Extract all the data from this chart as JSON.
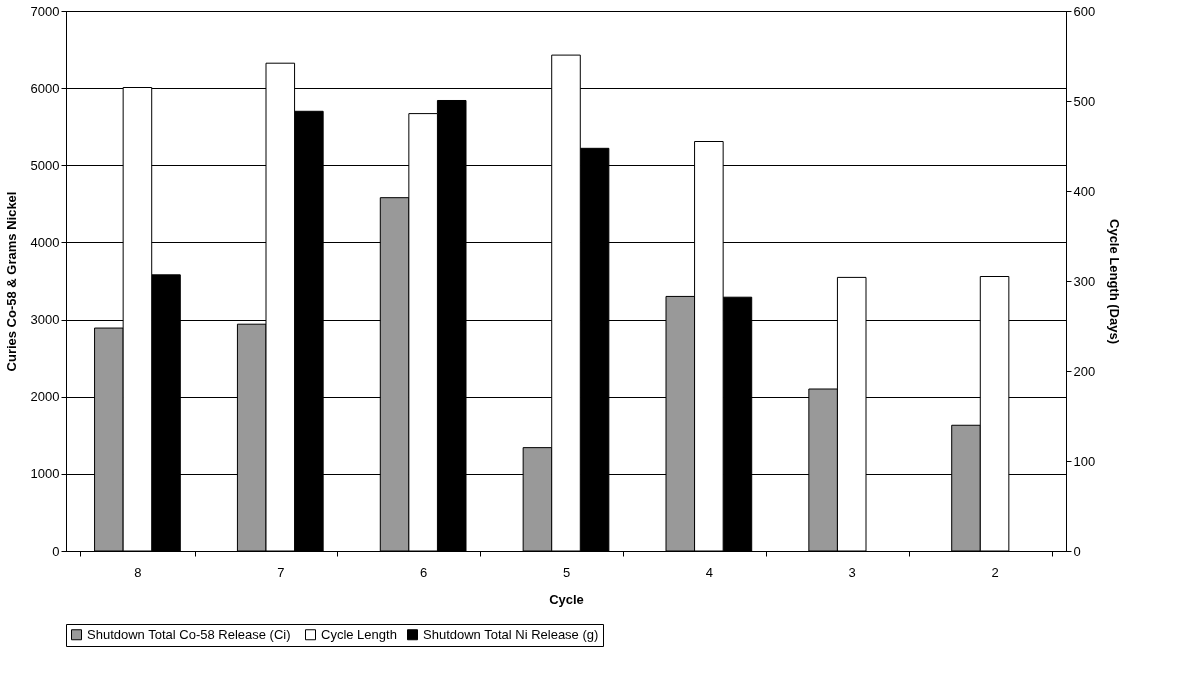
{
  "chart_data": {
    "type": "bar",
    "xlabel": "Cycle",
    "ylabel": "Curies Co-58 & Grams Nickel",
    "y2label": "Cycle Length (Days)",
    "categories": [
      "8",
      "7",
      "6",
      "5",
      "4",
      "3",
      "2"
    ],
    "series": [
      {
        "name": "Shutdown Total Co-58 Release  (Ci)",
        "color": "#999999",
        "values": [
          2890,
          2940,
          4580,
          1340,
          3300,
          2100,
          1630
        ]
      },
      {
        "name": "Cycle Length",
        "color": "#ffffff",
        "axis": "y2",
        "values": [
          515,
          542,
          486,
          551,
          455,
          304,
          305
        ]
      },
      {
        "name": "Shutdown Total Ni Release (g)",
        "color": "#000000",
        "values": [
          3580,
          5700,
          5840,
          5220,
          3290,
          null,
          null
        ]
      }
    ],
    "ylim": [
      0,
      7000
    ],
    "yticks": [
      0,
      1000,
      2000,
      3000,
      4000,
      5000,
      6000,
      7000
    ],
    "y2lim": [
      0,
      600
    ],
    "y2ticks": [
      0,
      100,
      200,
      300,
      400,
      500,
      600
    ],
    "grid": "y",
    "legend": "bottom"
  }
}
